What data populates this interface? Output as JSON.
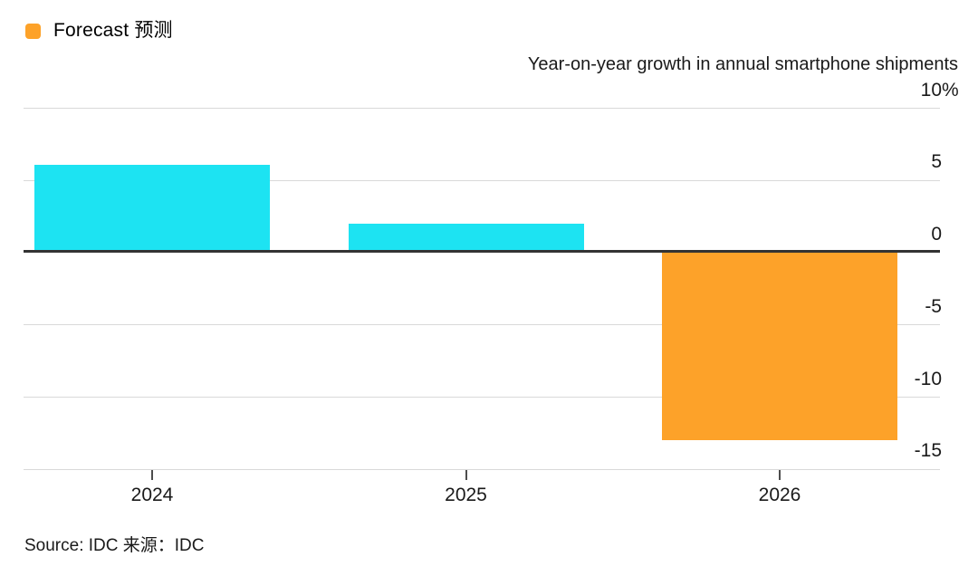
{
  "legend": {
    "label": "Forecast 预测",
    "swatch_color": "#FDA229"
  },
  "title": "Year-on-year growth in annual smartphone shipments",
  "source": "Source: IDC  来源：IDC",
  "colors": {
    "actual_bar": "#1DE3F2",
    "forecast_bar": "#FDA229",
    "gridline": "#D9D9D9",
    "zero_line": "#333333",
    "tick": "#4D4D4D",
    "text": "#1A1A1A",
    "background": "#FFFFFF"
  },
  "chart_data": {
    "type": "bar",
    "title": "Year-on-year growth in annual smartphone shipments",
    "categories": [
      "2024",
      "2025",
      "2026"
    ],
    "values": [
      6.1,
      2,
      -13
    ],
    "is_forecast": [
      false,
      false,
      true
    ],
    "unit": "%",
    "bar_colors": [
      "#1DE3F2",
      "#1DE3F2",
      "#FDA229"
    ],
    "yticks": [
      {
        "value": 10,
        "label": "10%"
      },
      {
        "value": 5,
        "label": "5"
      },
      {
        "value": 0,
        "label": "0"
      },
      {
        "value": -5,
        "label": "-5"
      },
      {
        "value": -10,
        "label": "-10"
      },
      {
        "value": -15,
        "label": "-15"
      }
    ],
    "ylim": [
      -15,
      10
    ],
    "grid": "horizontal-only",
    "legend_position": "top-left",
    "legend_entries": [
      {
        "name": "Forecast 预测",
        "color": "#FDA229"
      }
    ],
    "source": "Source: IDC 来源：IDC"
  }
}
